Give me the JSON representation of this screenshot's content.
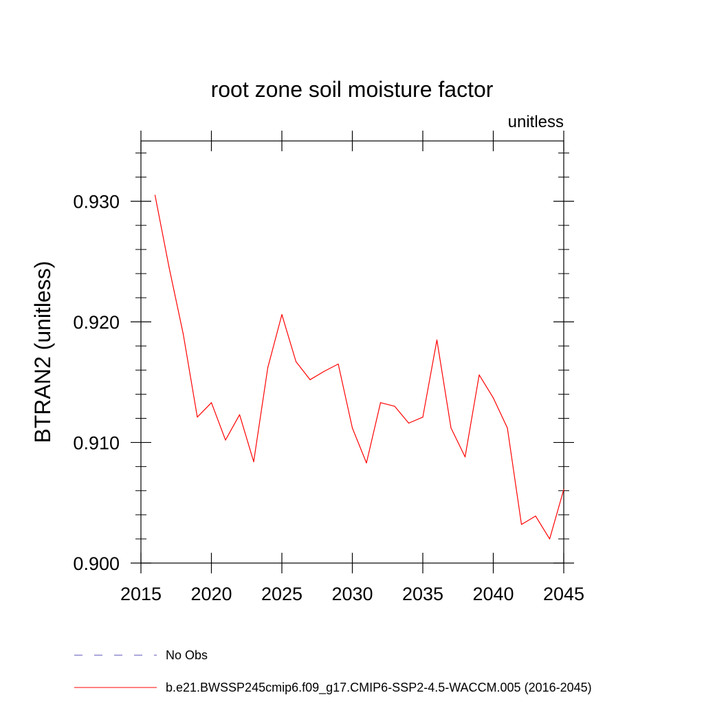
{
  "chart_data": {
    "type": "line",
    "title": "root zone soil moisture factor",
    "subtitle": "unitless",
    "ylabel": "BTRAN2  (unitless)",
    "xlabel": "",
    "xlim": [
      2015,
      2045
    ],
    "ylim": [
      0.9,
      0.935
    ],
    "x_ticks": [
      2015,
      2020,
      2025,
      2030,
      2035,
      2040,
      2045
    ],
    "x_tick_labels": [
      "2015",
      "2020",
      "2025",
      "2030",
      "2035",
      "2040",
      "2045"
    ],
    "y_ticks": [
      0.9,
      0.91,
      0.92,
      0.93
    ],
    "y_tick_labels": [
      "0.900",
      "0.910",
      "0.920",
      "0.930"
    ],
    "grid": false,
    "legend_position": "bottom",
    "legend": [
      {
        "label": "No Obs",
        "color": "#5a4fb8",
        "style": "dashed"
      },
      {
        "label": "b.e21.BWSSP245cmip6.f09_g17.CMIP6-SSP2-4.5-WACCM.005 (2016-2045)",
        "color": "#ff0000",
        "style": "solid"
      }
    ],
    "x": [
      2016,
      2017,
      2018,
      2019,
      2020,
      2021,
      2022,
      2023,
      2024,
      2025,
      2026,
      2027,
      2028,
      2029,
      2030,
      2031,
      2032,
      2033,
      2034,
      2035,
      2036,
      2037,
      2038,
      2039,
      2040,
      2041,
      2042,
      2043,
      2044,
      2045
    ],
    "series": [
      {
        "name": "b.e21.BWSSP245cmip6.f09_g17.CMIP6-SSP2-4.5-WACCM.005 (2016-2045)",
        "color": "#ff0000",
        "values": [
          0.9305,
          0.9245,
          0.919,
          0.9121,
          0.9133,
          0.9102,
          0.9123,
          0.9084,
          0.9162,
          0.9206,
          0.9167,
          0.9152,
          0.9159,
          0.9165,
          0.9112,
          0.9083,
          0.9133,
          0.913,
          0.9116,
          0.9121,
          0.9185,
          0.9112,
          0.9088,
          0.9156,
          0.9137,
          0.9112,
          0.9032,
          0.9039,
          0.902,
          0.9061
        ]
      }
    ]
  }
}
